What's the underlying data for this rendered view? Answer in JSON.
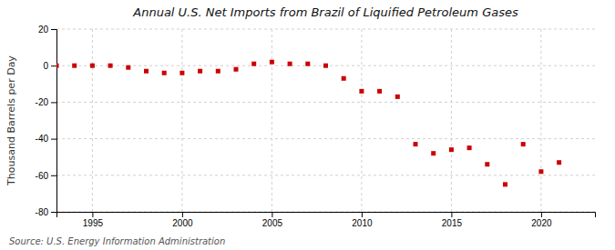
{
  "chart_data": {
    "type": "scatter",
    "title": "Annual U.S. Net Imports from Brazil of Liquified Petroleum Gases",
    "ylabel": "Thousand Barrels per Day",
    "annotations": [
      "Source: U.S. Energy Information Administration"
    ],
    "x": [
      1993,
      1994,
      1995,
      1996,
      1997,
      1998,
      1999,
      2000,
      2001,
      2002,
      2003,
      2004,
      2005,
      2006,
      2007,
      2008,
      2009,
      2010,
      2011,
      2012,
      2013,
      2014,
      2015,
      2016,
      2017,
      2018,
      2019,
      2020,
      2021
    ],
    "values": [
      0,
      0,
      0,
      0,
      -1,
      -3,
      -4,
      -4,
      -3,
      -3,
      -2,
      1,
      2,
      1,
      1,
      0,
      -7,
      -14,
      -14,
      -17,
      -43,
      -48,
      -46,
      -45,
      -54,
      -65,
      -43,
      -58,
      -53
    ],
    "color": "#cc0000",
    "marker": "square",
    "xlim": [
      1993,
      2023
    ],
    "xticks": [
      1995,
      2000,
      2005,
      2010,
      2015,
      2020
    ],
    "ylim": [
      -80,
      20
    ],
    "yticks": [
      -80,
      -60,
      -40,
      -20,
      0,
      20
    ],
    "grid": true
  }
}
